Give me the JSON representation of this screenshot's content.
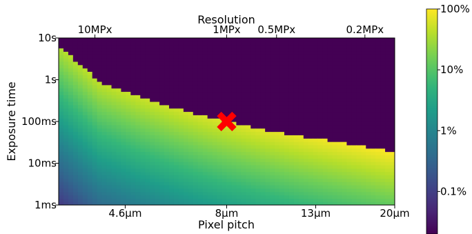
{
  "chart_data": {
    "type": "heatmap",
    "title": "",
    "xlabel": "Pixel pitch",
    "ylabel": "Exposure time",
    "top_axis_label": "Resolution",
    "x_scale": "log",
    "y_scale": "log",
    "x_unit": "µm",
    "y_unit": "s",
    "xlim": [
      3.2,
      20
    ],
    "ylim": [
      0.001,
      10
    ],
    "x_ticks": [
      {
        "value": 4.6,
        "label": "4.6µm"
      },
      {
        "value": 8,
        "label": "8µm"
      },
      {
        "value": 13,
        "label": "13µm"
      },
      {
        "value": 20,
        "label": "20µm"
      }
    ],
    "y_ticks": [
      {
        "value": 0.001,
        "label": "1ms"
      },
      {
        "value": 0.01,
        "label": "10ms"
      },
      {
        "value": 0.1,
        "label": "100ms"
      },
      {
        "value": 1,
        "label": "1s"
      },
      {
        "value": 10,
        "label": "10s"
      }
    ],
    "top_ticks": [
      {
        "value": 3.9,
        "label": "10MPx"
      },
      {
        "value": 8,
        "label": "1MPx"
      },
      {
        "value": 10.5,
        "label": "0.5MPx"
      },
      {
        "value": 17,
        "label": "0.2MPx"
      }
    ],
    "colorbar": {
      "colormap": "viridis",
      "scale": "log",
      "range": [
        0.0002,
        1
      ],
      "ticks": [
        {
          "value": 1,
          "label": "100%"
        },
        {
          "value": 0.1,
          "label": "10%"
        },
        {
          "value": 0.01,
          "label": "1%"
        },
        {
          "value": 0.001,
          "label": "0.1%"
        }
      ]
    },
    "saturation_boundary": [
      {
        "x": 3.2,
        "y": 7.0
      },
      {
        "x": 4.0,
        "y": 0.9
      },
      {
        "x": 5.0,
        "y": 0.38
      },
      {
        "x": 6.0,
        "y": 0.22
      },
      {
        "x": 7.0,
        "y": 0.14
      },
      {
        "x": 8.0,
        "y": 0.1
      },
      {
        "x": 10.0,
        "y": 0.063
      },
      {
        "x": 12.0,
        "y": 0.045
      },
      {
        "x": 14.0,
        "y": 0.035
      },
      {
        "x": 17.0,
        "y": 0.026
      },
      {
        "x": 20.0,
        "y": 0.019
      }
    ],
    "marker": {
      "x": 8,
      "y": 0.1,
      "symbol": "X",
      "color": "#ff0000"
    }
  }
}
